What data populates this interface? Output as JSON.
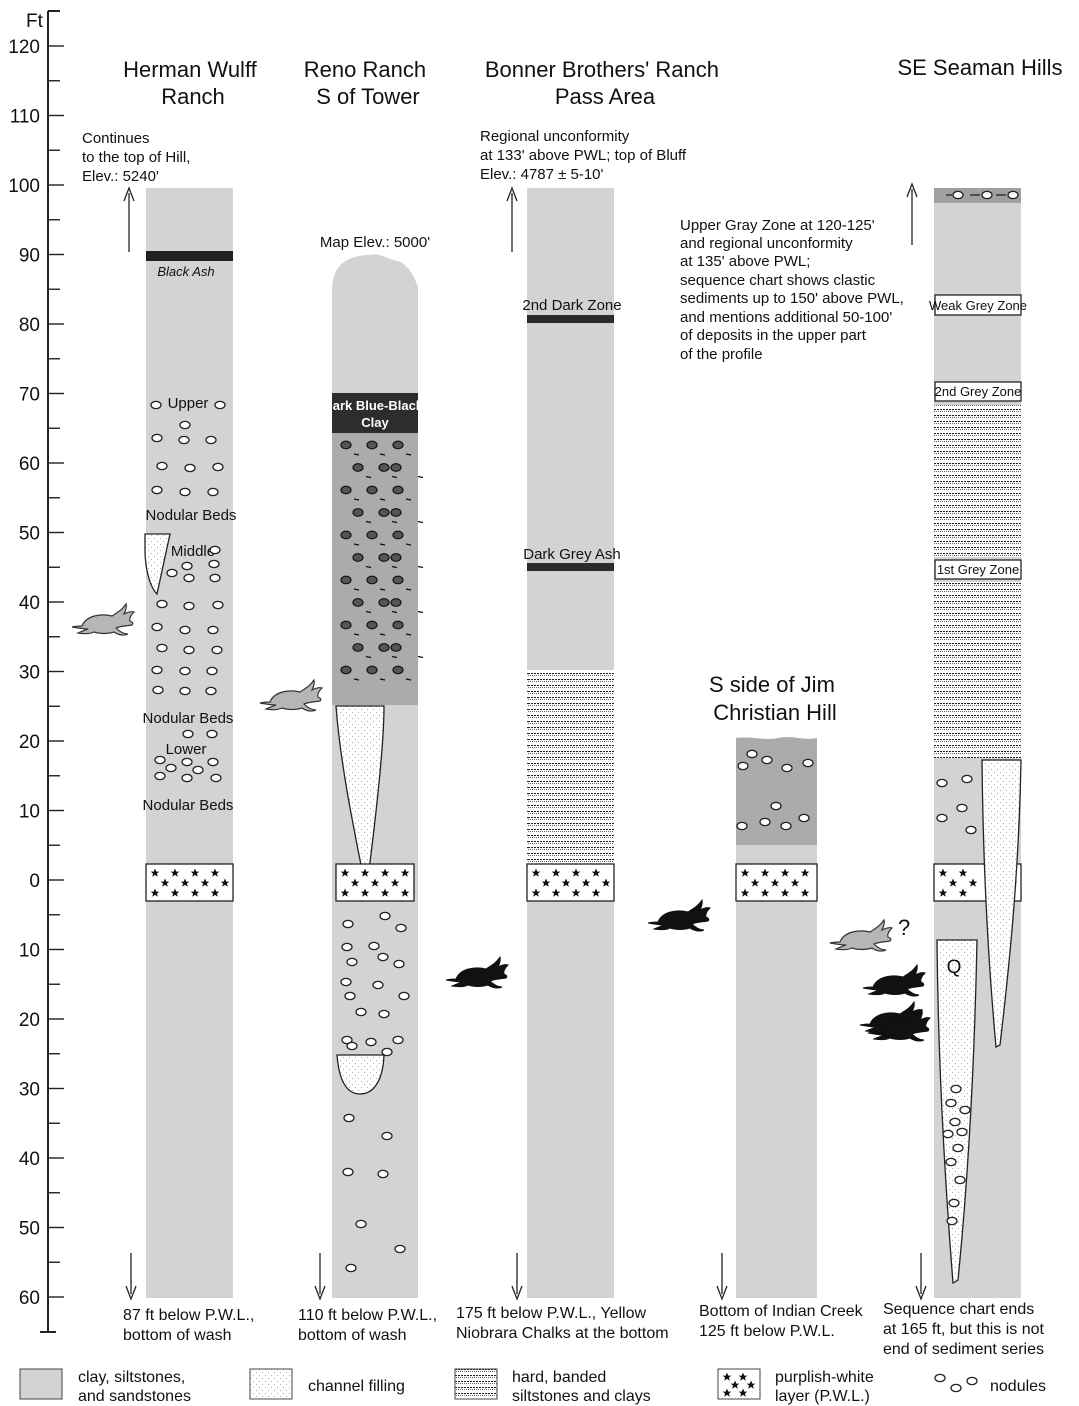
{
  "axis": {
    "unit": "Ft",
    "upper_ticks": [
      "120",
      "110",
      "100",
      "90",
      "80",
      "70",
      "60",
      "50",
      "40",
      "30",
      "20",
      "10",
      "0"
    ],
    "lower_ticks": [
      "10",
      "20",
      "30",
      "40",
      "50",
      "60"
    ]
  },
  "columns": {
    "wulff": {
      "title": [
        "Herman Wulff",
        "Ranch"
      ],
      "note": [
        "Continues",
        "to the top of Hill,",
        "Elev.: 5240'"
      ],
      "black_ash": "Black Ash",
      "upper": "Upper",
      "nodular_upper": "Nodular Beds",
      "middle": "Middle",
      "nodular_mid": "Nodular Beds",
      "lower": "Lower",
      "nodular_low": "Nodular Beds",
      "bottom": [
        "87 ft below P.W.L.,",
        "bottom of wash"
      ]
    },
    "reno": {
      "title": [
        "Reno Ranch",
        "S of Tower"
      ],
      "map_elev": "Map Elev.: 5000'",
      "dark_clay": [
        "Dark Blue-Black",
        "Clay"
      ],
      "bottom": [
        "110 ft below P.W.L.,",
        "bottom of wash"
      ]
    },
    "bonner": {
      "title": [
        "Bonner Brothers' Ranch",
        "Pass Area"
      ],
      "note": [
        "Regional unconformity",
        "at 133' above PWL; top of Bluff",
        "Elev.: 4787 ± 5-10'"
      ],
      "zone2": "2nd Dark Zone",
      "grey_ash": "Dark Grey Ash",
      "bottom": [
        "175 ft below P.W.L., Yellow",
        "Niobrara Chalks at the bottom"
      ]
    },
    "jim": {
      "title": [
        "S side of Jim",
        "Christian Hill"
      ],
      "bottom": [
        "Bottom of Indian Creek",
        "125 ft below P.W.L."
      ]
    },
    "seaman": {
      "title": "SE Seaman Hills",
      "note": [
        "Upper Gray Zone at 120-125'",
        "and regional unconformity",
        "at 135' above PWL;",
        "sequence chart shows clastic",
        "sediments up to 150' above PWL,",
        "and mentions additional 50-100'",
        "of deposits in the upper part",
        "of the profile"
      ],
      "weak_zone": "Weak Grey Zone",
      "zone2": "2nd  Grey Zone",
      "zone1": "1st  Grey Zone",
      "q": "Q",
      "question": "?",
      "bottom": [
        "Sequence chart ends",
        "at 165 ft, but this is not",
        "end of sediment series"
      ]
    }
  },
  "legend": {
    "clay": [
      "clay, siltstones,",
      "and sandstones"
    ],
    "channel": "channel filling",
    "banded": [
      "hard, banded",
      "siltstones and clays"
    ],
    "pwl": [
      "purplish-white",
      "layer (P.W.L.)"
    ],
    "nodules": "nodules"
  },
  "colors": {
    "clay": "#d3d3d3",
    "dark_clay": "#ababab",
    "dark_band": "#2b2b2b",
    "channel": "#ffffff",
    "axis": "#222222"
  }
}
